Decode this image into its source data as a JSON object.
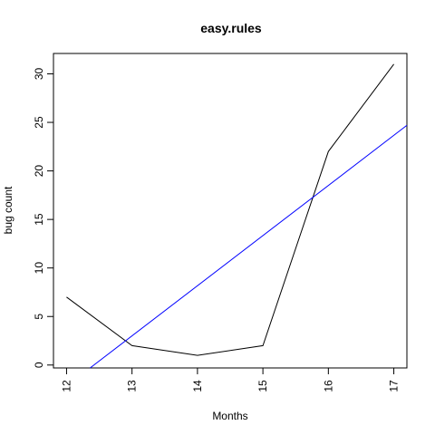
{
  "chart_data": {
    "type": "line",
    "title": "easy.rules",
    "xlabel": "Months",
    "ylabel": "bug count",
    "xlim": [
      11.8,
      17.2
    ],
    "ylim": [
      -0.3,
      32.1
    ],
    "x_ticks": [
      12,
      13,
      14,
      15,
      16,
      17
    ],
    "y_ticks": [
      0,
      5,
      10,
      15,
      20,
      25,
      30
    ],
    "grid": false,
    "legend": "none",
    "series": [
      {
        "x": [
          12,
          13,
          14,
          15,
          16,
          17
        ],
        "values": [
          7,
          2,
          1,
          2,
          22,
          31
        ],
        "color": "#000000"
      },
      {
        "style": "fit-line",
        "x": [
          12.36,
          17.2
        ],
        "values": [
          -0.3,
          24.7
        ],
        "color": "#0000ff"
      }
    ]
  }
}
